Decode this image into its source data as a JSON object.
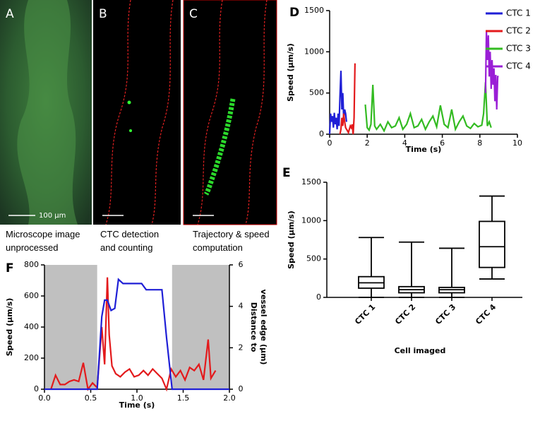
{
  "panels": [
    {
      "letter": "A",
      "caption": [
        "Microscope image",
        "unprocessed"
      ],
      "scale_label": "100 μm"
    },
    {
      "letter": "B",
      "caption": [
        "CTC detection",
        "and counting"
      ]
    },
    {
      "letter": "C",
      "caption": [
        "Trajectory & speed",
        "computation"
      ]
    }
  ],
  "chart_data": [
    {
      "type": "line",
      "panel": "D",
      "ylabel": "Speed (μm/s)",
      "xlabel": "Time (s)",
      "xlim": [
        0,
        10
      ],
      "xticks": [
        0,
        2,
        4,
        6,
        8,
        10
      ],
      "ylim": [
        0,
        1500
      ],
      "yticks": [
        0,
        500,
        1000,
        1500
      ],
      "legend": "top-right",
      "series": [
        {
          "name": "CTC 1",
          "color": "#1f1fd6",
          "x": [
            0,
            0.05,
            0.1,
            0.15,
            0.2,
            0.25,
            0.3,
            0.35,
            0.4,
            0.45,
            0.5,
            0.55,
            0.6,
            0.65,
            0.7,
            0.75,
            0.8,
            0.85,
            0.9
          ],
          "values": [
            0,
            250,
            150,
            220,
            80,
            260,
            120,
            200,
            60,
            250,
            100,
            450,
            770,
            300,
            500,
            200,
            300,
            250,
            150
          ]
        },
        {
          "name": "CTC 2",
          "color": "#e31a1c",
          "x": [
            0.55,
            0.6,
            0.65,
            0.7,
            0.75,
            0.8,
            0.85,
            0.9,
            0.95,
            1.0,
            1.05,
            1.1,
            1.15,
            1.2,
            1.25,
            1.3,
            1.35
          ],
          "values": [
            0,
            60,
            200,
            100,
            250,
            150,
            80,
            60,
            40,
            20,
            60,
            100,
            80,
            120,
            0,
            200,
            860
          ]
        },
        {
          "name": "CTC 3",
          "color": "#33bb22",
          "x": [
            1.9,
            2.0,
            2.1,
            2.2,
            2.3,
            2.4,
            2.5,
            2.7,
            2.9,
            3.1,
            3.3,
            3.5,
            3.7,
            3.9,
            4.1,
            4.3,
            4.5,
            4.7,
            4.9,
            5.1,
            5.3,
            5.5,
            5.7,
            5.9,
            6.1,
            6.3,
            6.5,
            6.7,
            6.9,
            7.1,
            7.3,
            7.5,
            7.7,
            7.9,
            8.1,
            8.2,
            8.3,
            8.4,
            8.5,
            8.6
          ],
          "values": [
            360,
            80,
            50,
            120,
            600,
            100,
            60,
            120,
            40,
            150,
            80,
            100,
            200,
            60,
            120,
            250,
            80,
            100,
            180,
            60,
            150,
            220,
            90,
            350,
            120,
            80,
            300,
            60,
            150,
            220,
            100,
            70,
            130,
            90,
            110,
            250,
            630,
            100,
            150,
            80
          ]
        },
        {
          "name": "CTC 4",
          "color": "#9a1fd6",
          "x": [
            8.3,
            8.35,
            8.4,
            8.45,
            8.5,
            8.55,
            8.6,
            8.65,
            8.7,
            8.75,
            8.8,
            8.85,
            8.9,
            8.95,
            9.0
          ],
          "values": [
            500,
            1250,
            900,
            1200,
            700,
            1000,
            550,
            900,
            600,
            800,
            400,
            720,
            300,
            700,
            700
          ]
        }
      ]
    },
    {
      "type": "box",
      "panel": "E",
      "ylabel": "Speed (μm/s)",
      "xlabel": "Cell imaged",
      "ylim": [
        0,
        1500
      ],
      "yticks": [
        0,
        500,
        1000,
        1500
      ],
      "categories": [
        "CTC 1",
        "CTC 2",
        "CTC 3",
        "CTC 4"
      ],
      "boxes": [
        {
          "min": 0,
          "q1": 120,
          "median": 190,
          "q3": 270,
          "max": 780
        },
        {
          "min": 0,
          "q1": 60,
          "median": 100,
          "q3": 140,
          "max": 720
        },
        {
          "min": 0,
          "q1": 60,
          "median": 100,
          "q3": 130,
          "max": 640
        },
        {
          "min": 240,
          "q1": 390,
          "median": 660,
          "q3": 990,
          "max": 1320
        }
      ]
    },
    {
      "type": "line",
      "panel": "F",
      "ylabel": "Speed (μm/s)",
      "xlabel": "Time (s)",
      "y2label": [
        "Distance to",
        "vessel edge (μm)"
      ],
      "xlim": [
        0,
        2
      ],
      "xticks": [
        {
          "value": 0,
          "label": "0.0"
        },
        0.5,
        {
          "value": 1,
          "label": "1.0"
        },
        1.5,
        {
          "value": 2,
          "label": "2.0"
        }
      ],
      "ylim": [
        0,
        800
      ],
      "yticks": [
        0,
        200,
        400,
        600,
        800
      ],
      "y2lim": [
        0,
        6
      ],
      "y2ticks": [
        0,
        2,
        4,
        6
      ],
      "shaded": [
        [
          0,
          0.57
        ],
        [
          1.38,
          2.0
        ]
      ],
      "shade_color": "#c0c0c0",
      "series": [
        {
          "color": "#e31a1c",
          "x": [
            0.07,
            0.12,
            0.17,
            0.22,
            0.27,
            0.32,
            0.37,
            0.42,
            0.47,
            0.52,
            0.57,
            0.62,
            0.65,
            0.68,
            0.7,
            0.73,
            0.77,
            0.82,
            0.87,
            0.92,
            0.97,
            1.02,
            1.07,
            1.12,
            1.17,
            1.22,
            1.27,
            1.32,
            1.37,
            1.42,
            1.47,
            1.52,
            1.57,
            1.62,
            1.67,
            1.72,
            1.77,
            1.8,
            1.85
          ],
          "values": [
            0,
            90,
            30,
            30,
            50,
            60,
            50,
            170,
            0,
            40,
            10,
            400,
            160,
            720,
            350,
            150,
            100,
            80,
            110,
            130,
            80,
            90,
            120,
            90,
            130,
            100,
            70,
            0,
            130,
            80,
            120,
            60,
            140,
            120,
            160,
            60,
            320,
            70,
            120
          ]
        },
        {
          "color": "#1f1fd6",
          "axis": "y2",
          "x": [
            0,
            0.57,
            0.62,
            0.65,
            0.68,
            0.72,
            0.76,
            0.8,
            0.85,
            0.95,
            1.05,
            1.1,
            1.2,
            1.27,
            1.32,
            1.38,
            2.0
          ],
          "values": [
            0,
            0,
            3.5,
            4.3,
            4.3,
            3.8,
            3.9,
            5.3,
            5.1,
            5.1,
            5.1,
            4.8,
            4.8,
            4.8,
            2.5,
            0,
            0
          ]
        }
      ]
    }
  ]
}
